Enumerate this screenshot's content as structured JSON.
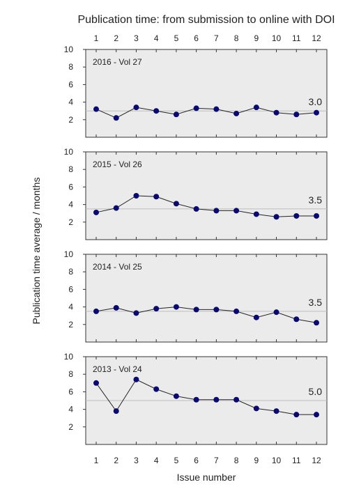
{
  "chart_data": {
    "type": "line",
    "title": "Publication time: from submission to online with DOI",
    "xlabel": "Issue number",
    "ylabel": "Publication time average / months",
    "x": [
      1,
      2,
      3,
      4,
      5,
      6,
      7,
      8,
      9,
      10,
      11,
      12
    ],
    "ylim": [
      0,
      10
    ],
    "yticks": [
      2,
      4,
      6,
      8,
      10
    ],
    "grid": false,
    "colors": {
      "marker": "#0a0a6e",
      "line": "#222222",
      "reference": "#bdbdbd",
      "panel_bg": "#ebebeb",
      "value_text": "#2f5d80"
    },
    "panels": [
      {
        "label": "2016 - Vol 27",
        "average": 3.0,
        "average_label": "3.0",
        "values": [
          3.2,
          2.2,
          3.4,
          3.0,
          2.6,
          3.3,
          3.2,
          2.7,
          3.4,
          2.8,
          2.6,
          2.8
        ]
      },
      {
        "label": "2015 - Vol 26",
        "average": 3.5,
        "average_label": "3.5",
        "values": [
          3.1,
          3.6,
          5.0,
          4.9,
          4.1,
          3.5,
          3.3,
          3.3,
          2.9,
          2.6,
          2.7,
          2.7
        ]
      },
      {
        "label": "2014 - Vol 25",
        "average": 3.5,
        "average_label": "3.5",
        "values": [
          3.5,
          3.9,
          3.3,
          3.8,
          4.0,
          3.7,
          3.7,
          3.5,
          2.8,
          3.4,
          2.6,
          2.2
        ]
      },
      {
        "label": "2013 - Vol 24",
        "average": 5.0,
        "average_label": "5.0",
        "values": [
          7.0,
          3.8,
          7.4,
          6.3,
          5.5,
          5.1,
          5.1,
          5.1,
          4.1,
          3.8,
          3.4,
          3.4
        ]
      }
    ]
  }
}
